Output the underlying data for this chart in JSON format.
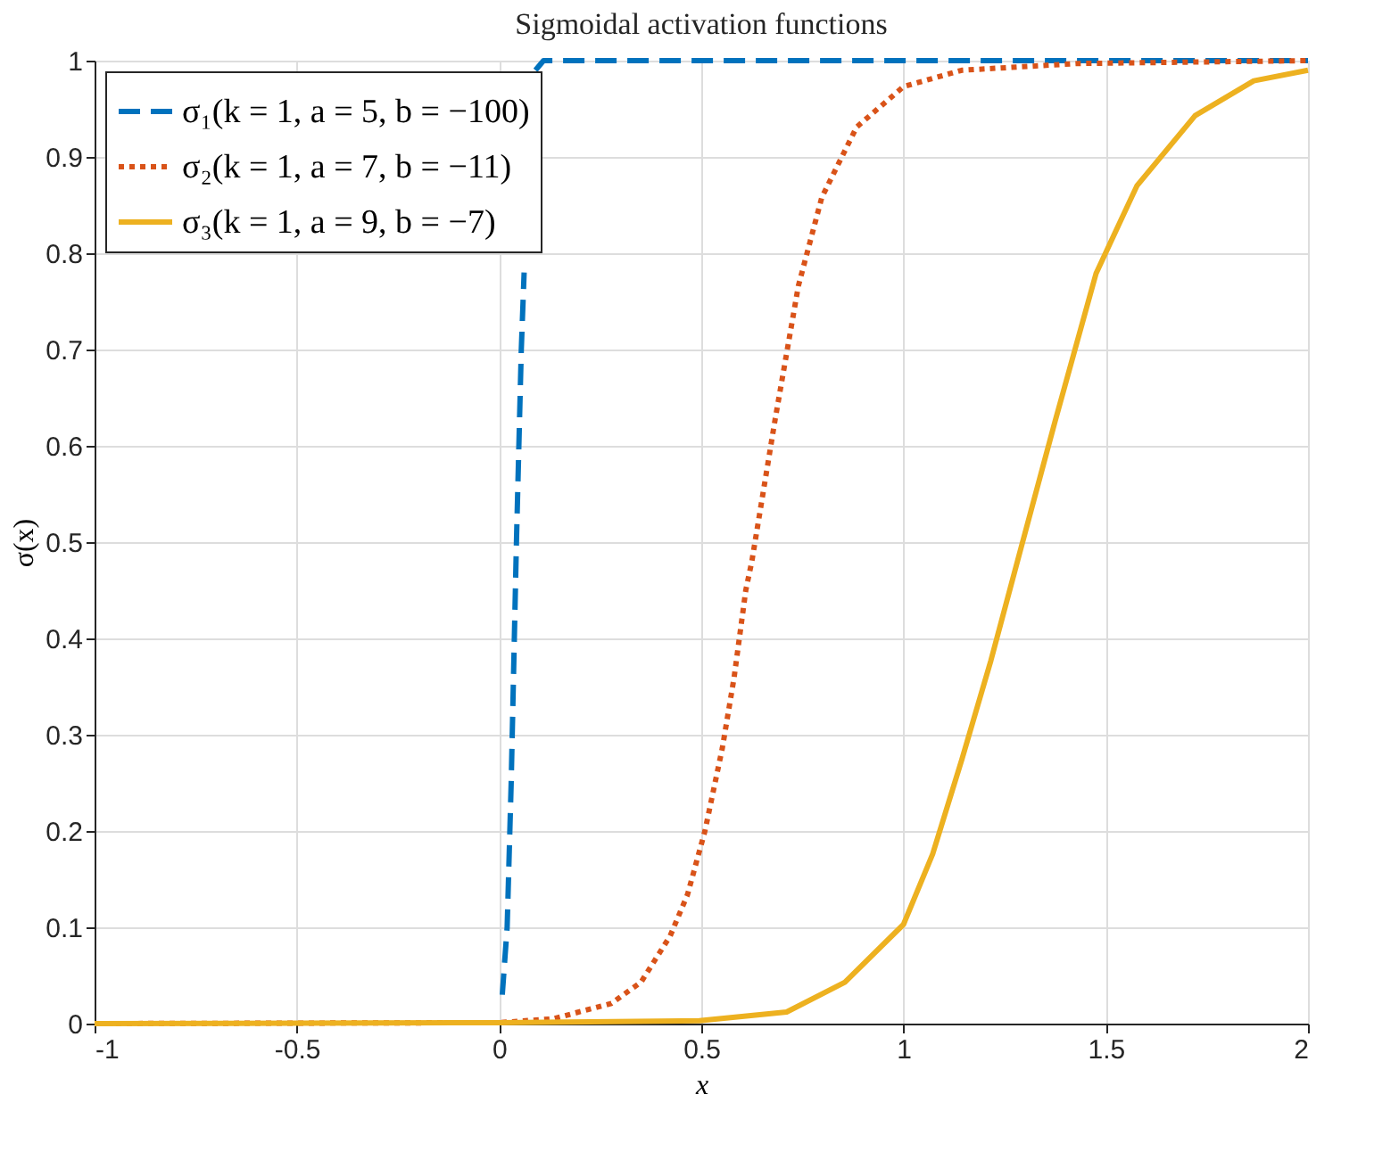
{
  "chart_data": {
    "type": "line",
    "title": "Sigmoidal activation functions",
    "xlabel": "x",
    "ylabel": "σ(x)",
    "xlim": [
      -1,
      2
    ],
    "xticks": [
      -1,
      -0.5,
      0,
      0.5,
      1,
      1.5,
      2
    ],
    "ylim": [
      0,
      1
    ],
    "yticks": [
      0,
      0.1,
      0.2,
      0.3,
      0.4,
      0.5,
      0.6,
      0.7,
      0.8,
      0.9,
      1
    ],
    "grid": true,
    "legend": "top left",
    "marker": "none",
    "series": [
      {
        "name": "σ₁(k = 1, a = 5, b = −100)",
        "color": "#0072bd",
        "line_style": "dashed",
        "x": [
          0.008,
          0.02,
          0.03,
          0.043,
          0.055,
          0.062,
          0.075,
          0.09,
          0.11,
          2
        ],
        "values": [
          0.03,
          0.1,
          0.25,
          0.5,
          0.7,
          0.78,
          null,
          0.99,
          1,
          1
        ]
      },
      {
        "name": "σ₂(k = 1, a = 7, b = −11)",
        "color": "#d95319",
        "line_style": "dotted",
        "x": [
          -1,
          0,
          0.134,
          0.278,
          0.351,
          0.423,
          0.466,
          0.509,
          0.552,
          0.581,
          0.61,
          0.625,
          0.682,
          0.74,
          0.798,
          0.884,
          1.0,
          1.144,
          1.43,
          2
        ],
        "values": [
          0,
          0.001,
          0.005,
          0.021,
          0.043,
          0.091,
          0.134,
          0.2,
          0.286,
          0.359,
          0.45,
          0.48,
          0.626,
          0.766,
          0.858,
          0.931,
          0.973,
          0.99,
          0.997,
          1
        ]
      },
      {
        "name": "σ₃(k = 1, a = 9, b = −7)",
        "color": "#edb120",
        "line_style": "solid",
        "x": [
          -1,
          0,
          0.495,
          0.711,
          0.855,
          1.0,
          1.072,
          1.144,
          1.216,
          1.288,
          1.375,
          1.476,
          1.577,
          1.721,
          1.866,
          2
        ],
        "values": [
          0,
          0.001,
          0.003,
          0.012,
          0.043,
          0.103,
          0.176,
          0.274,
          0.377,
          0.49,
          0.626,
          0.779,
          0.87,
          0.943,
          0.979,
          0.99
        ]
      }
    ]
  }
}
